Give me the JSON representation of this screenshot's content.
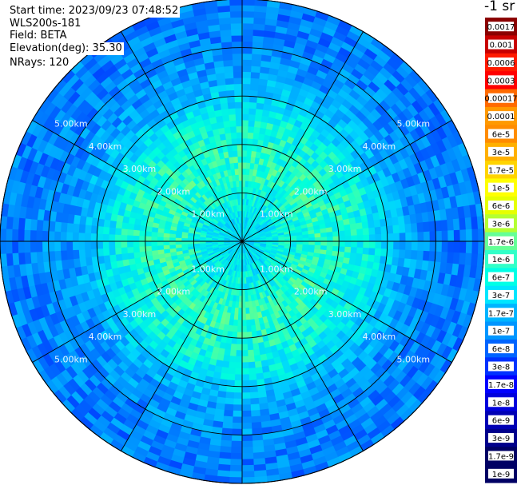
{
  "header": {
    "start_time": "Start time: 2023/09/23 07:48:52",
    "instrument": "WLS200s-181",
    "field": "Field: BETA",
    "elevation": "Elevation(deg): 35.30",
    "nrays": "NRays: 120"
  },
  "colorbar": {
    "unit_label": "-1 sr",
    "ticks": [
      "0.0017",
      "0.001",
      "0.0006",
      "0.0003",
      "0.00017",
      "0.0001",
      "6e-5",
      "3e-5",
      "1.7e-5",
      "1e-5",
      "6e-6",
      "3e-6",
      "1.7e-6",
      "1e-6",
      "6e-7",
      "3e-7",
      "1.7e-7",
      "1e-7",
      "6e-8",
      "3e-8",
      "1.7e-8",
      "1e-8",
      "6e-9",
      "3e-9",
      "1.7e-9",
      "1e-9"
    ],
    "colors": [
      "#8b0000",
      "#c80000",
      "#ff1a00",
      "#ff0000",
      "#ff6a00",
      "#ff9900",
      "#ff8c00",
      "#ffb000",
      "#ffd400",
      "#ffff00",
      "#e6ff00",
      "#b4ff32",
      "#64ff96",
      "#32ffc8",
      "#00ffe6",
      "#00e6ff",
      "#00b4ff",
      "#0096ff",
      "#0064ff",
      "#0032ff",
      "#0000ff",
      "#0000dc",
      "#0000b4",
      "#00008c",
      "#000064"
    ]
  },
  "chart_data": {
    "type": "heatmap",
    "projection": "polar PPI",
    "field": "BETA",
    "elevation_deg": 35.3,
    "nrays": 120,
    "range_rings_km": [
      1,
      2,
      3,
      4,
      5
    ],
    "range_labels": [
      "1.00km",
      "2.00km",
      "3.00km",
      "4.00km",
      "5.00km"
    ],
    "spokes_deg": [
      0,
      30,
      60,
      90,
      120,
      150,
      180,
      210,
      240,
      270,
      300,
      330
    ],
    "max_range_km": 5.0,
    "typical_values": [
      {
        "range_km": 0.5,
        "value": 1.7e-07
      },
      {
        "range_km": 1.5,
        "value": 6e-07
      },
      {
        "range_km": 2.5,
        "value": 3e-07
      },
      {
        "range_km": 3.5,
        "value": 3e-08
      },
      {
        "range_km": 4.5,
        "value": 1.7e-08
      }
    ]
  }
}
